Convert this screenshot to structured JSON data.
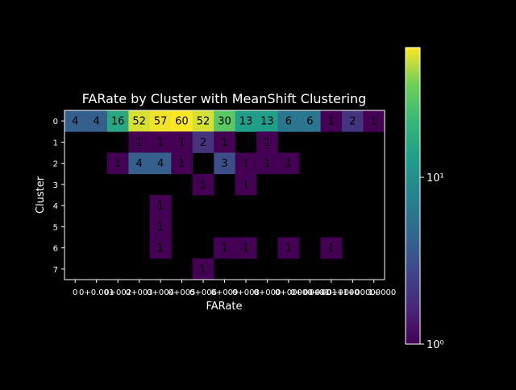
{
  "chart_data": {
    "type": "heatmap",
    "title": "FARate by Cluster with MeanShift Clustering",
    "xlabel": "FARate",
    "ylabel": "Cluster",
    "x_tick_labels": [
      "0",
      "0+0.001",
      "0+002",
      "0+003",
      "0+004",
      "0+005",
      "0+006",
      "0+009",
      "0+008",
      "0+000",
      "0+000",
      "0+00+01",
      "0+0+01+000",
      "0+00+01+00000000",
      "1+"
    ],
    "y_tick_labels": [
      "0",
      "1",
      "2",
      "3",
      "4",
      "5",
      "6",
      "7"
    ],
    "values": [
      [
        4,
        4,
        16,
        52,
        57,
        60,
        52,
        30,
        13,
        13,
        6,
        6,
        1,
        2,
        1
      ],
      [
        null,
        null,
        null,
        1,
        1,
        1,
        2,
        1,
        null,
        1,
        null,
        null,
        null,
        null,
        null
      ],
      [
        null,
        null,
        1,
        4,
        4,
        1,
        null,
        3,
        1,
        1,
        1,
        null,
        null,
        null,
        null
      ],
      [
        null,
        null,
        null,
        null,
        null,
        null,
        1,
        null,
        1,
        null,
        null,
        null,
        null,
        null,
        null
      ],
      [
        null,
        null,
        null,
        null,
        1,
        null,
        null,
        null,
        null,
        null,
        null,
        null,
        null,
        null,
        null
      ],
      [
        null,
        null,
        null,
        null,
        1,
        null,
        null,
        null,
        null,
        null,
        null,
        null,
        null,
        null,
        null
      ],
      [
        null,
        null,
        null,
        null,
        1,
        null,
        null,
        1,
        1,
        null,
        1,
        null,
        1,
        null,
        null
      ],
      [
        null,
        null,
        null,
        null,
        null,
        null,
        1,
        null,
        null,
        null,
        null,
        null,
        null,
        null,
        null
      ]
    ],
    "colorscale": "viridis",
    "color_scale_type": "log",
    "color_range": [
      1,
      60
    ],
    "colorbar_tick_labels": [
      "10⁰",
      "10¹"
    ],
    "colorbar_ticks": [
      1,
      10
    ],
    "background_color": "#000000",
    "text_color": "#ffffff"
  }
}
